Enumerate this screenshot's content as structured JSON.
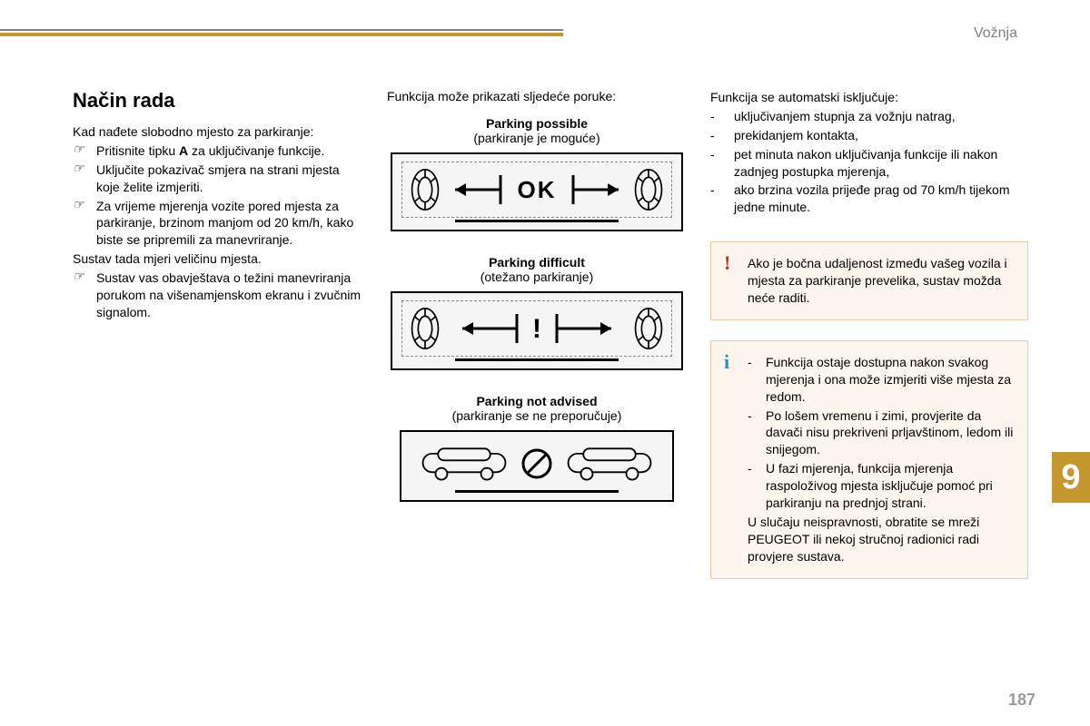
{
  "colors": {
    "accent": "#c4982e",
    "gray": "#808080",
    "warn": "#c03020",
    "info": "#2e8ec4",
    "callout_bg": "#fdf6ee",
    "callout_border": "#e6ccae"
  },
  "section_label": "Vožnja",
  "heading": "Način rada",
  "left": {
    "intro": "Kad nađete slobodno mjesto za parkiranje:",
    "bullets": [
      {
        "pre": "Pritisnite tipku ",
        "bold": "A",
        "post": " za uključivanje funkcije."
      },
      {
        "text": "Uključite pokazivač smjera na strani mjesta koje želite izmjeriti."
      },
      {
        "text": "Za vrijeme mjerenja vozite pored mjesta za parkiranje, brzinom manjom od 20 km/h, kako biste se pripremili za manevriranje."
      }
    ],
    "mid_line": "Sustav tada mjeri veličinu mjesta.",
    "bullets2": [
      {
        "text": "Sustav vas obavještava o težini manevriranja porukom na višenamjenskom ekranu i zvučnim signalom."
      }
    ]
  },
  "mid": {
    "intro": "Funkcija može prikazati sljedeće poruke:",
    "messages": [
      {
        "title": "Parking possible",
        "sub": "(parkiranje je moguće)",
        "kind": "ok"
      },
      {
        "title": "Parking difficult",
        "sub": "(otežano parkiranje)",
        "kind": "difficult"
      },
      {
        "title": "Parking not advised",
        "sub": "(parkiranje se ne preporučuje)",
        "kind": "no"
      }
    ]
  },
  "right": {
    "intro": "Funkcija se automatski isključuje:",
    "bullets": [
      "uključivanjem stupnja za vožnju natrag,",
      "prekidanjem kontakta,",
      "pet minuta nakon uključivanja funkcije ili nakon zadnjeg postupka mjerenja,",
      "ako brzina vozila prijeđe prag od 70 km/h tijekom jedne minute."
    ],
    "warn": "Ako je bočna udaljenost između vašeg vozila i mjesta za parkiranje prevelika, sustav možda neće raditi.",
    "info_bullets": [
      "Funkcija ostaje dostupna nakon svakog mjerenja i ona može izmjeriti više mjesta za redom.",
      "Po lošem vremenu i zimi, provjerite da davači nisu prekriveni prljavštinom, ledom ili snijegom.",
      "U fazi mjerenja, funkcija mjerenja raspoloživog mjesta isključuje pomoć pri parkiranju na prednjoj strani."
    ],
    "info_tail": "U slučaju neispravnosti, obratite se mreži PEUGEOT ili nekoj stručnoj radionici radi provjere sustava."
  },
  "chapter": "9",
  "page": "187"
}
